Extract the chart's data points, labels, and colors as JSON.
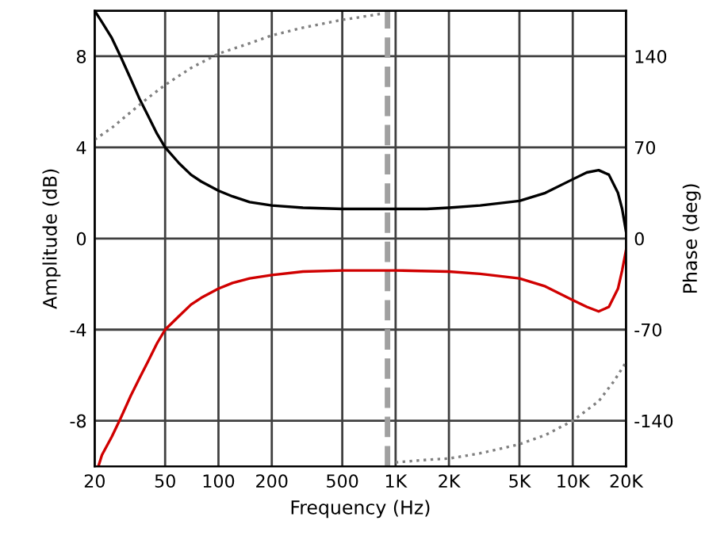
{
  "chart_data": {
    "type": "line",
    "xlabel": "Frequency (Hz)",
    "ylabel": "Amplitude (dB)",
    "y2label": "Phase (deg)",
    "log": "x",
    "grid": true,
    "legend": false,
    "xlim": [
      20,
      20000
    ],
    "xticks": [
      20,
      50,
      100,
      200,
      500,
      {
        "value": 1000,
        "label": "1K"
      },
      {
        "value": 2000,
        "label": "2K"
      },
      {
        "value": 5000,
        "label": "5K"
      },
      {
        "value": 10000,
        "label": "10K"
      },
      {
        "value": 20000,
        "label": "20K"
      }
    ],
    "ylim": [
      -10,
      10
    ],
    "yticks": [
      -8,
      -4,
      0,
      4,
      8
    ],
    "y2lim": [
      -175,
      175
    ],
    "y2ticks": [
      -140,
      -70,
      0,
      70,
      140
    ],
    "ref_lines": [
      {
        "axis": "x",
        "value": 900,
        "color": "#a0a0a0",
        "line_style": "dashed"
      }
    ],
    "series": [
      {
        "color": "#000000",
        "line_style": "solid",
        "x": [
          20,
          22,
          25,
          28,
          32,
          36,
          40,
          45,
          50,
          60,
          70,
          80,
          100,
          120,
          150,
          200,
          300,
          500,
          700,
          900,
          1000,
          1500,
          2000,
          3000,
          5000,
          7000,
          10000,
          12000,
          14000,
          16000,
          18000,
          19000,
          20000
        ],
        "values": [
          10,
          9.5,
          8.8,
          8,
          7,
          6.1,
          5.4,
          4.6,
          4,
          3.3,
          2.8,
          2.5,
          2.1,
          1.85,
          1.6,
          1.45,
          1.35,
          1.3,
          1.3,
          1.3,
          1.3,
          1.3,
          1.35,
          1.45,
          1.65,
          2.0,
          2.6,
          2.9,
          3.0,
          2.8,
          2.0,
          1.3,
          0.3
        ]
      },
      {
        "color": "#d00000",
        "line_style": "solid",
        "x": [
          21,
          22,
          25,
          28,
          32,
          36,
          40,
          45,
          50,
          60,
          70,
          80,
          100,
          120,
          150,
          200,
          300,
          500,
          700,
          1000,
          2000,
          3000,
          5000,
          7000,
          10000,
          12000,
          14000,
          16000,
          18000,
          19000,
          20000
        ],
        "values": [
          -10,
          -9.5,
          -8.7,
          -7.9,
          -6.9,
          -6.1,
          -5.4,
          -4.6,
          -4,
          -3.4,
          -2.9,
          -2.6,
          -2.2,
          -1.95,
          -1.75,
          -1.6,
          -1.45,
          -1.4,
          -1.4,
          -1.4,
          -1.45,
          -1.55,
          -1.75,
          -2.1,
          -2.7,
          -3.0,
          -3.2,
          -3.0,
          -2.2,
          -1.4,
          -0.5
        ]
      },
      {
        "color": "#808080",
        "line_style": "dotted",
        "axis": "y2",
        "x": [
          20,
          25,
          30,
          40,
          50,
          70,
          100,
          150,
          200,
          300,
          500,
          700,
          850,
          900,
          1000,
          1500,
          2000,
          3000,
          5000,
          7000,
          10000,
          14000,
          17000,
          20000
        ],
        "values": [
          76,
          85,
          94,
          108,
          118,
          131,
          142,
          150,
          156,
          162,
          168,
          171,
          173,
          null,
          -172,
          -170,
          -169,
          -165,
          -158,
          -151,
          -140,
          -125,
          -110,
          -95
        ]
      }
    ]
  }
}
